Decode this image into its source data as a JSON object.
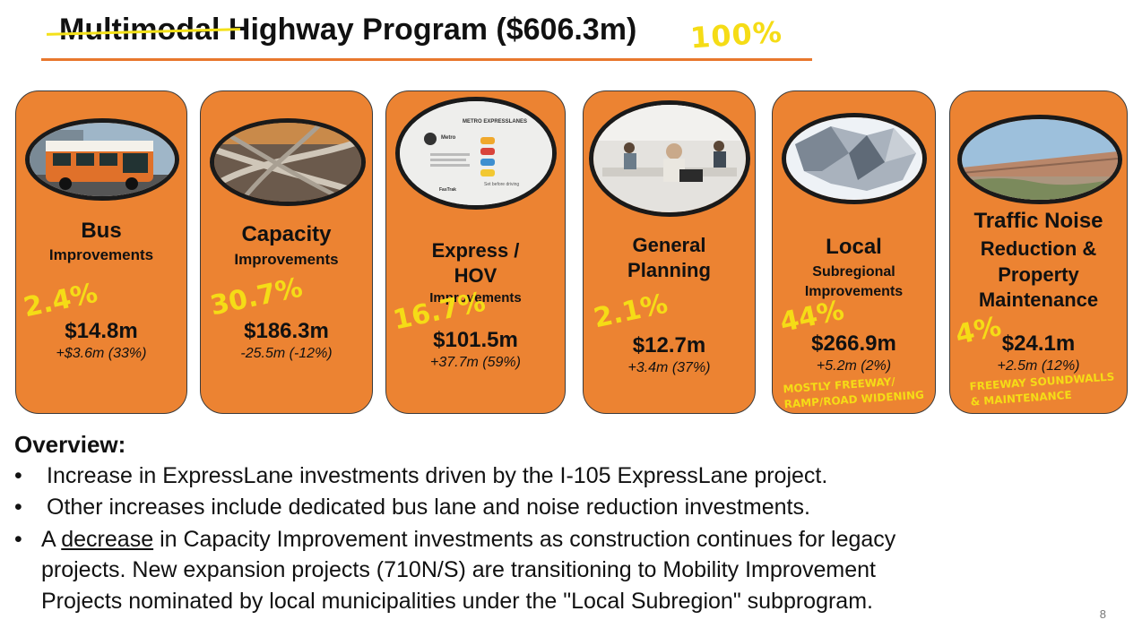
{
  "title": {
    "struck": "Multimodal",
    "main": "Highway Program ($606.3m)",
    "total_pct": "100%"
  },
  "cards": [
    {
      "label_big": "Bus",
      "label_small": "Improvements",
      "amount": "$14.8m",
      "change": "+$3.6m (33%)",
      "pct": "2.4%"
    },
    {
      "label_big": "Capacity",
      "label_small": "Improvements",
      "amount": "$186.3m",
      "change": "-25.5m (-12%)",
      "pct": "30.7%"
    },
    {
      "label_big": "Express /",
      "label_big2": "HOV",
      "label_small": "Improvements",
      "amount": "$101.5m",
      "change": "+37.7m (59%)",
      "pct": "16.7%",
      "photo_text": {
        "brand": "METRO EXPRESSLANES",
        "logo": "Metro",
        "caption": "Set before driving",
        "fastrak": "FasTrak"
      }
    },
    {
      "label_big": "General",
      "label_big2": "Planning",
      "amount": "$12.7m",
      "change": "+3.4m (37%)",
      "pct": "2.1%"
    },
    {
      "label_big": "Local",
      "label_small": "Subregional",
      "label_small2": "Improvements",
      "amount": "$266.9m",
      "change": "+5.2m (2%)",
      "pct": "44%",
      "note1": "MOSTLY FREEWAY/",
      "note2": "RAMP/ROAD WIDENING"
    },
    {
      "label_big": "Traffic Noise",
      "label_big2": "Reduction &",
      "label_big3": "Property",
      "label_big4": "Maintenance",
      "amount": "$24.1m",
      "change": "+2.5m (12%)",
      "pct": "4%",
      "note1": "FREEWAY SOUNDWALLS",
      "note2": "& MAINTENANCE"
    }
  ],
  "overview": {
    "heading": "Overview:",
    "bullet_char": "•",
    "b1": "Increase in ExpressLane investments driven by the I-105 ExpressLane project.",
    "b2": "Other increases include dedicated bus lane and noise reduction investments.",
    "b3_pre": "A",
    "b3_underlined": "decrease",
    "b3_post": "in Capacity Improvement investments as construction continues for legacy",
    "b3_line2": "projects.  New expansion projects (710N/S) are transitioning to Mobility Improvement",
    "b3_line3": "Projects nominated by local municipalities under the \"Local Subregion\" subprogram."
  },
  "page_number": "8"
}
